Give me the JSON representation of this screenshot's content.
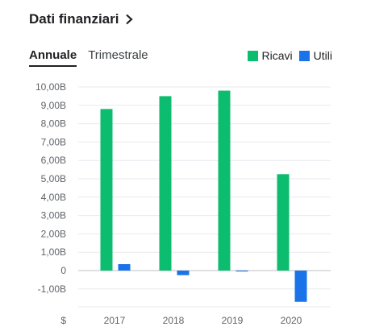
{
  "header": {
    "title": "Dati finanziari"
  },
  "tabs": [
    {
      "label": "Annuale",
      "active": true
    },
    {
      "label": "Trimestrale",
      "active": false
    }
  ],
  "currency_symbol": "$",
  "colors": {
    "revenue": "#0cbd6f",
    "profit": "#1a73e8",
    "grid": "#e8eaed",
    "axis": "#bdc1c6"
  },
  "chart_data": {
    "type": "bar",
    "categories": [
      "2017",
      "2018",
      "2019",
      "2020"
    ],
    "series": [
      {
        "name": "Ricavi",
        "values": [
          8.8,
          9.5,
          9.8,
          5.25
        ]
      },
      {
        "name": "Utili",
        "values": [
          0.35,
          -0.25,
          -0.05,
          -1.7
        ]
      }
    ],
    "yticks": [
      10,
      9,
      8,
      7,
      6,
      5,
      4,
      3,
      2,
      1,
      0,
      -1
    ],
    "ytick_labels": [
      "10,00B",
      "9,00B",
      "8,00B",
      "7,00B",
      "6,00B",
      "5,00B",
      "4,00B",
      "3,00B",
      "2,00B",
      "1,00B",
      "0",
      "-1,00B"
    ],
    "ylim": [
      -1.8,
      10
    ],
    "grid": true,
    "legend_position": "top-right"
  }
}
